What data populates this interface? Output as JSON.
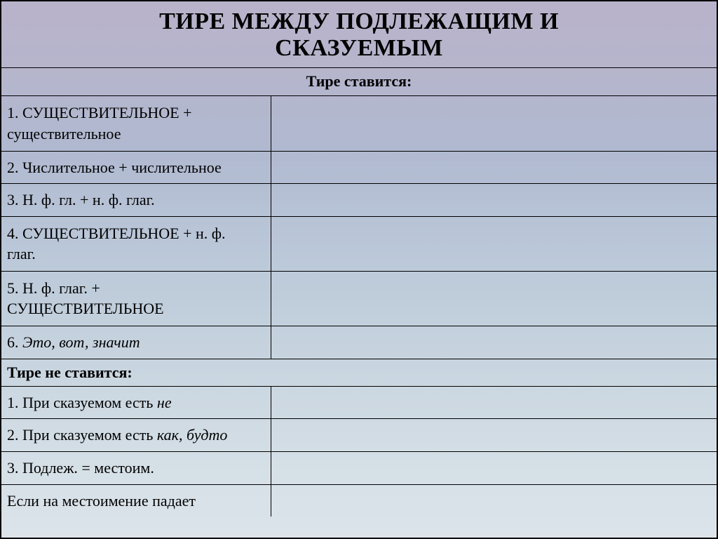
{
  "title_line1": "ТИРЕ МЕЖДУ ПОДЛЕЖАЩИМ  И",
  "title_line2": "СКАЗУЕМЫМ",
  "sub1": "Тире ставится:",
  "rows1": [
    {
      "n": "1.",
      "a": "СУЩЕСТВИТЕЛЬНОЕ",
      "plus": " + ",
      "b": "существительное",
      "b_lower": true
    },
    {
      "n": "2.",
      "text": "Числительное + числительное"
    },
    {
      "n": "3.",
      "text": "Н. ф. гл. + н. ф. глаг."
    },
    {
      "n": "4.",
      "a": "СУЩЕСТВИТЕЛЬНОЕ",
      "plus": " + н. ф. ",
      "b": "глаг.",
      "b_lower": true
    },
    {
      "n": "5.",
      "text": "Н. ф. глаг. + СУЩЕСТВИТЕЛЬНОЕ",
      "upper_tail": true
    },
    {
      "n": "6.",
      "it": "Это, вот, значит"
    }
  ],
  "sub2": "Тире не ставится:",
  "rows2": [
    {
      "n": "1.",
      "pre": "При сказуемом есть ",
      "it": "не"
    },
    {
      "n": "2.",
      "pre": "При сказуемом есть ",
      "it": "как, будто"
    },
    {
      "n": "3.",
      "text": "Подлеж. = местоим."
    }
  ],
  "tail": "Если на местоимение падает"
}
